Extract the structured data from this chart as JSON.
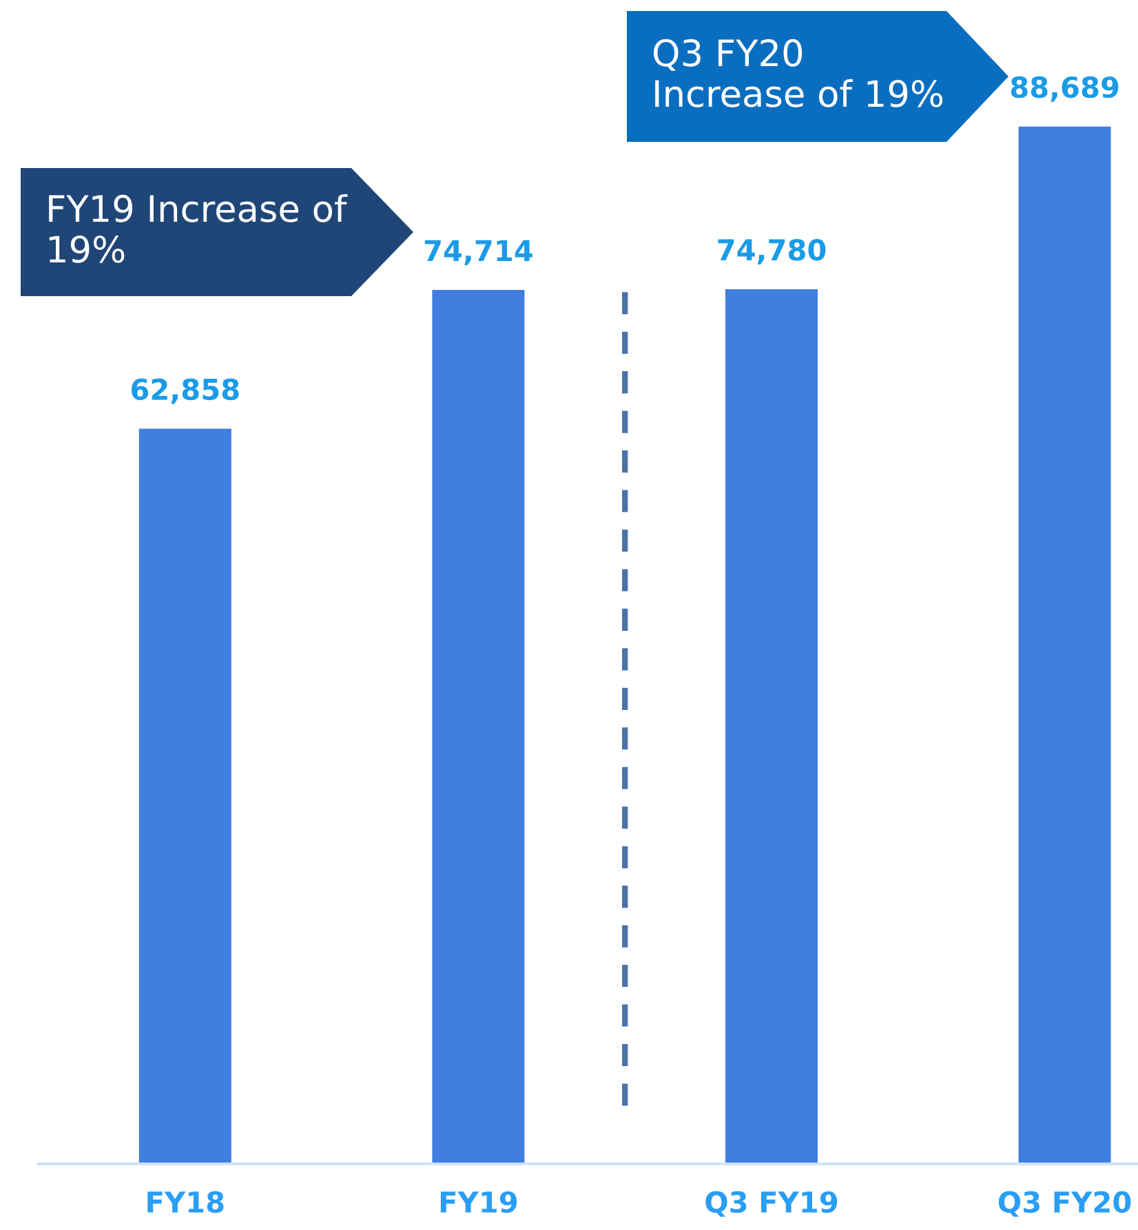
{
  "chart_data": {
    "type": "bar",
    "categories": [
      "FY18",
      "FY19",
      "Q3 FY19",
      "Q3 FY20"
    ],
    "values": [
      62858,
      74714,
      74780,
      88689
    ],
    "color": "#407ee0",
    "value_labels": [
      "62,858",
      "74,714",
      "74,780",
      "88,689"
    ],
    "annotations": [
      "FY19 Increase of\n19%",
      "Q3 FY20\nIncrease of 19%"
    ],
    "grid": false
  }
}
